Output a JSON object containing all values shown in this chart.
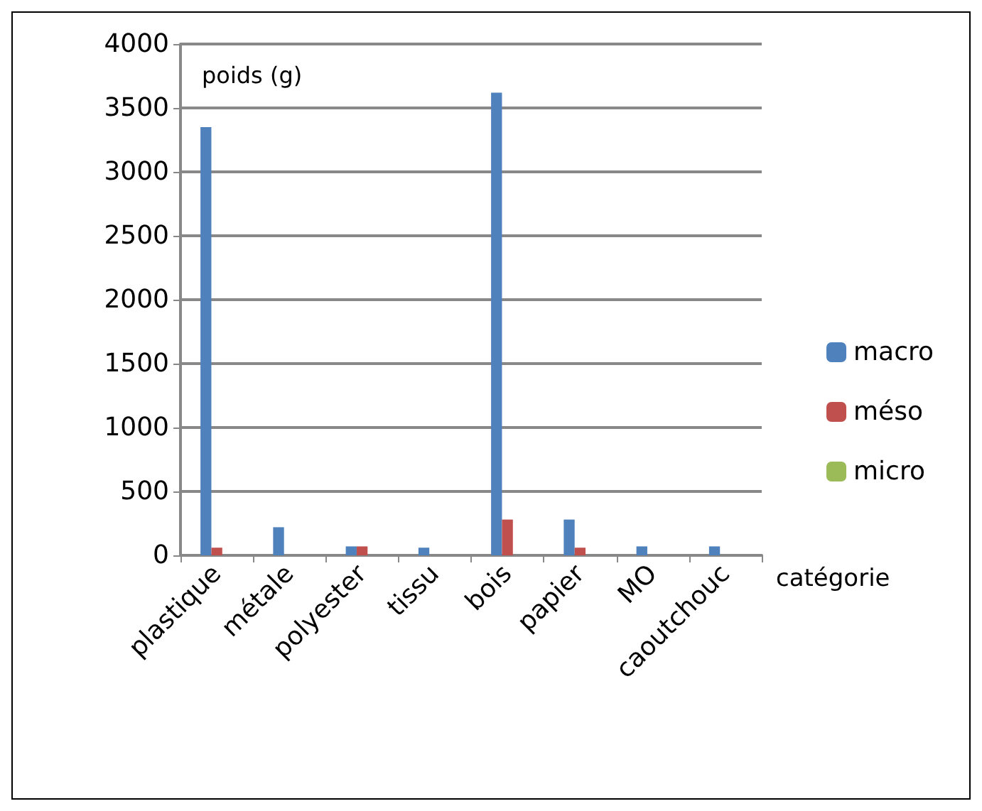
{
  "chart_data": {
    "type": "bar",
    "ylabel": "poids (g)",
    "xlabel": "catégorie",
    "categories": [
      "plastique",
      "métale",
      "polyester",
      "tissu",
      "bois",
      "papier",
      "MO",
      "caoutchouc"
    ],
    "series": [
      {
        "name": "macro",
        "color": "#4f81bd",
        "values": [
          3350,
          220,
          70,
          60,
          3620,
          280,
          70,
          70
        ]
      },
      {
        "name": "méso",
        "color": "#c0504d",
        "values": [
          60,
          0,
          70,
          0,
          280,
          60,
          0,
          0
        ]
      },
      {
        "name": "micro",
        "color": "#9bbb59",
        "values": [
          0,
          0,
          0,
          0,
          0,
          0,
          0,
          0
        ]
      }
    ],
    "ylim": [
      0,
      4000
    ],
    "yticks": [
      0,
      500,
      1000,
      1500,
      2000,
      2500,
      3000,
      3500,
      4000
    ],
    "grid": "y",
    "legend": "right"
  }
}
